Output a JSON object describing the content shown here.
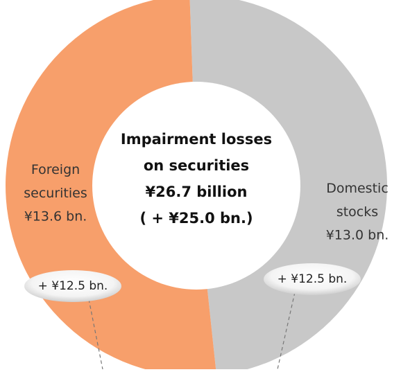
{
  "chart_data": {
    "type": "donut",
    "categories": [
      "Domestic stocks",
      "Foreign securities"
    ],
    "values": [
      13.0,
      13.6
    ],
    "value_labels": [
      "¥13.0 bn.",
      "¥13.6 bn."
    ],
    "colors": [
      "#c8c8c8",
      "#f79f6b"
    ],
    "change_labels": [
      "+ ¥12.5 bn.",
      "+ ¥12.5 bn."
    ],
    "annotations": [
      "Impairment losses",
      "on securities",
      "¥26.7 billion",
      "( + ¥25.0 bn.)"
    ]
  }
}
